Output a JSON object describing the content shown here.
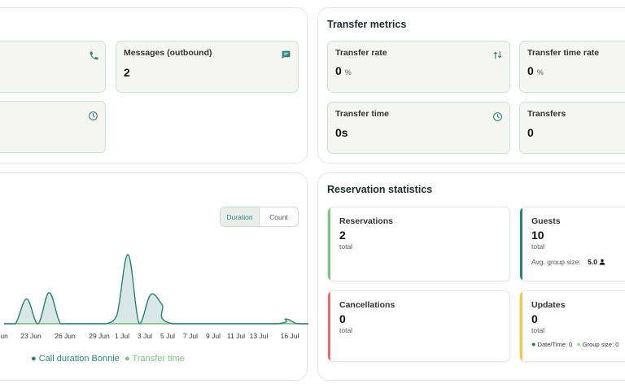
{
  "top_left": {
    "messages_card": {
      "label": "Messages (outbound)",
      "value": "2",
      "icon": "chat-icon"
    },
    "call_card_icon": "phone-icon",
    "time_card_icon": "clock-icon"
  },
  "transfer_metrics": {
    "title": "Transfer metrics",
    "cards": [
      {
        "label": "Transfer rate",
        "value": "0",
        "unit": "%",
        "icon": "transfer-arrows-icon"
      },
      {
        "label": "Transfer time rate",
        "value": "0",
        "unit": "%"
      },
      {
        "label": "Transfer time",
        "value": "0s",
        "icon": "clock-icon"
      },
      {
        "label": "Transfers",
        "value": "0"
      }
    ]
  },
  "chart_panel": {
    "toggle": {
      "duration": "Duration",
      "count": "Count",
      "selected": "Duration"
    },
    "legend": [
      {
        "name": "Call duration Bonnie",
        "color": "#2f7f78"
      },
      {
        "name": "Transfer time",
        "color": "#7fc27f"
      }
    ]
  },
  "chart_data": {
    "type": "area",
    "x_tick_labels": [
      "Jun",
      "23 Jun",
      "26 Jun",
      "29 Jun",
      "1 Jul",
      "3 Jul",
      "5 Jul",
      "7 Jul",
      "9 Jul",
      "11 Jul",
      "13 Jul",
      "16 Jul"
    ],
    "series": [
      {
        "name": "Call duration Bonnie",
        "color": "#2f7f78",
        "points": [
          {
            "x": "19 Jun",
            "y": 0
          },
          {
            "x": "20 Jun",
            "y": 0
          },
          {
            "x": "21 Jun",
            "y": 0.36
          },
          {
            "x": "22 Jun",
            "y": 0
          },
          {
            "x": "23 Jun",
            "y": 0.45
          },
          {
            "x": "24 Jun",
            "y": 0
          },
          {
            "x": "25 Jun",
            "y": 0
          },
          {
            "x": "26 Jun",
            "y": 0
          },
          {
            "x": "27 Jun",
            "y": 0
          },
          {
            "x": "28 Jun",
            "y": 0
          },
          {
            "x": "29 Jun",
            "y": 0.12
          },
          {
            "x": "30 Jun",
            "y": 1.0
          },
          {
            "x": "1 Jul",
            "y": 0
          },
          {
            "x": "2 Jul",
            "y": 0.42
          },
          {
            "x": "3 Jul",
            "y": 0.28
          },
          {
            "x": "4 Jul",
            "y": 0
          },
          {
            "x": "13 Jul",
            "y": 0
          },
          {
            "x": "14 Jul",
            "y": 0.07
          },
          {
            "x": "15 Jul",
            "y": 0
          },
          {
            "x": "16 Jul",
            "y": 0
          }
        ]
      },
      {
        "name": "Transfer time",
        "color": "#7fc27f",
        "points": [
          {
            "x": "19 Jun",
            "y": 0
          },
          {
            "x": "16 Jul",
            "y": 0
          }
        ]
      }
    ],
    "ylim": [
      0,
      1
    ],
    "grid": false,
    "legend_position": "bottom"
  },
  "reservation_statistics": {
    "title": "Reservation statistics",
    "cards": [
      {
        "label": "Reservations",
        "value": "2",
        "sub": "total",
        "color": "#7fc27f"
      },
      {
        "label": "Guests",
        "value": "10",
        "sub": "total",
        "color": "#2f7f78",
        "extra_label": "Avg. group size:",
        "extra_value": "5.0"
      },
      {
        "label": "Cancellations",
        "value": "0",
        "sub": "total",
        "color": "#e07070"
      },
      {
        "label": "Updates",
        "value": "0",
        "sub": "total",
        "color": "#f2c94c",
        "breakdown": [
          {
            "label": "Date/Time: 0",
            "color": "#1e7b2e"
          },
          {
            "label": "Group size: 0",
            "color": "#90e090"
          }
        ]
      }
    ]
  }
}
